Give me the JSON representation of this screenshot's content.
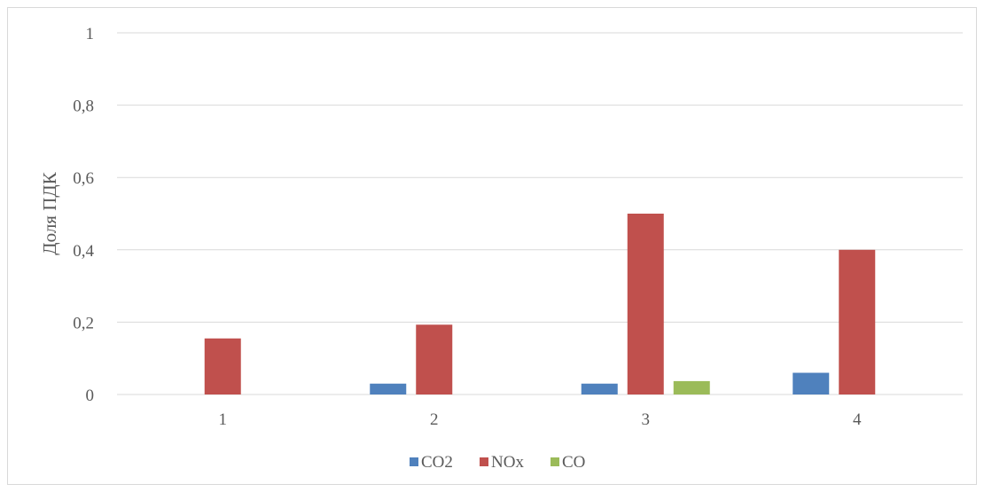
{
  "chart_data": {
    "type": "bar",
    "categories": [
      "1",
      "2",
      "3",
      "4"
    ],
    "series": [
      {
        "name": "CO2",
        "color": "#4f81bd",
        "values": [
          0,
          0.03,
          0.03,
          0.06
        ]
      },
      {
        "name": "NOx",
        "color": "#c0504d",
        "values": [
          0.155,
          0.193,
          0.5,
          0.4
        ]
      },
      {
        "name": "CO",
        "color": "#9bbb59",
        "values": [
          0,
          0,
          0.037,
          0
        ]
      }
    ],
    "title": "",
    "xlabel": "",
    "ylabel": "Доля ПДК",
    "ylim": [
      0,
      1
    ],
    "yticks": [
      "0",
      "0,2",
      "0,4",
      "0,6",
      "0,8",
      "1"
    ],
    "grid": true,
    "legend_position": "bottom"
  }
}
